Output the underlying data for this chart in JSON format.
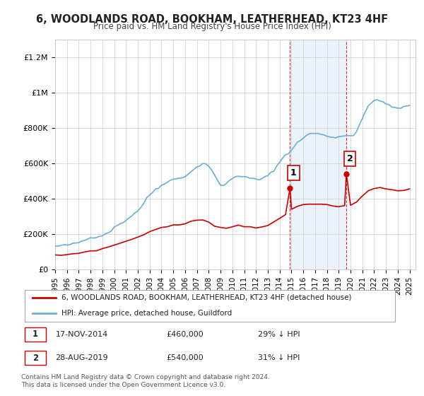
{
  "title": "6, WOODLANDS ROAD, BOOKHAM, LEATHERHEAD, KT23 4HF",
  "subtitle": "Price paid vs. HM Land Registry's House Price Index (HPI)",
  "ylabel_ticks": [
    "£0",
    "£200K",
    "£400K",
    "£600K",
    "£800K",
    "£1M",
    "£1.2M"
  ],
  "ylim": [
    0,
    1300000
  ],
  "yticks": [
    0,
    200000,
    400000,
    600000,
    800000,
    1000000,
    1200000
  ],
  "xlim_start": 1995.0,
  "xlim_end": 2025.5,
  "sale1_x": 2014.88,
  "sale1_y": 460000,
  "sale1_label": "1",
  "sale2_x": 2019.65,
  "sale2_y": 540000,
  "sale2_label": "2",
  "vline1_x": 2014.88,
  "vline2_x": 2019.65,
  "shade_x1": 2014.88,
  "shade_x2": 2019.65,
  "legend_line1": "6, WOODLANDS ROAD, BOOKHAM, LEATHERHEAD, KT23 4HF (detached house)",
  "legend_line2": "HPI: Average price, detached house, Guildford",
  "table_row1": "1    17-NOV-2014         £460,000         29% ↓ HPI",
  "table_row2": "2    28-AUG-2019         £540,000         31% ↓ HPI",
  "footnote": "Contains HM Land Registry data © Crown copyright and database right 2024.\nThis data is licensed under the Open Government Licence v3.0.",
  "hpi_color": "#6baed6",
  "price_color": "#cc0000",
  "shade_color": "#c6dbef",
  "vline_color": "#cc0000",
  "background_color": "#ffffff"
}
